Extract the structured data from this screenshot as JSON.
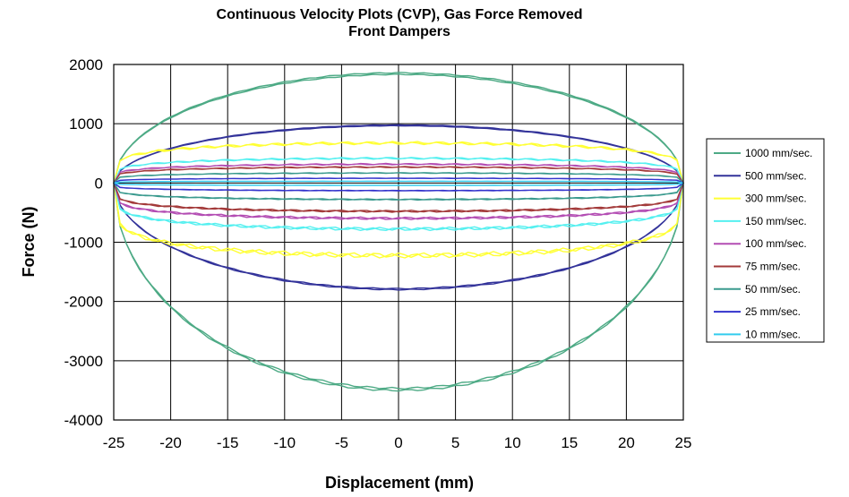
{
  "chart_data": {
    "type": "line",
    "title": "Continuous Velocity Plots (CVP), Gas Force Removed",
    "subtitle": "Front Dampers",
    "xlabel": "Displacement (mm)",
    "ylabel": "Force (N)",
    "xlim": [
      -25,
      25
    ],
    "ylim": [
      -4000,
      2000
    ],
    "xticks": [
      -25,
      -20,
      -15,
      -10,
      -5,
      0,
      5,
      10,
      15,
      20,
      25
    ],
    "yticks": [
      -4000,
      -3000,
      -2000,
      -1000,
      0,
      1000,
      2000
    ],
    "grid": true,
    "legend_position": "right",
    "curve_shape": "elliptical hysteresis loop; upper branch = extension force, lower branch = compression force",
    "series": [
      {
        "name": "1000 mm/sec.",
        "color": "#4daa85",
        "upper_peak": 1860,
        "lower_peak": -3500
      },
      {
        "name": "500 mm/sec.",
        "color": "#33339a",
        "upper_peak": 980,
        "lower_peak": -1800
      },
      {
        "name": "300 mm/sec.",
        "color": "#ffff33",
        "upper_peak": 680,
        "lower_peak": -1230
      },
      {
        "name": "150 mm/sec.",
        "color": "#55f0f0",
        "upper_peak": 420,
        "lower_peak": -780
      },
      {
        "name": "100 mm/sec.",
        "color": "#b34db3",
        "upper_peak": 320,
        "lower_peak": -600
      },
      {
        "name": "75 mm/sec.",
        "color": "#a33a3a",
        "upper_peak": 270,
        "lower_peak": -480
      },
      {
        "name": "50 mm/sec.",
        "color": "#3a9a8e",
        "upper_peak": 170,
        "lower_peak": -280
      },
      {
        "name": "25 mm/sec.",
        "color": "#3333cc",
        "upper_peak": 80,
        "lower_peak": -130
      },
      {
        "name": "10 mm/sec.",
        "color": "#33ccee",
        "upper_peak": 30,
        "lower_peak": -40
      }
    ]
  }
}
